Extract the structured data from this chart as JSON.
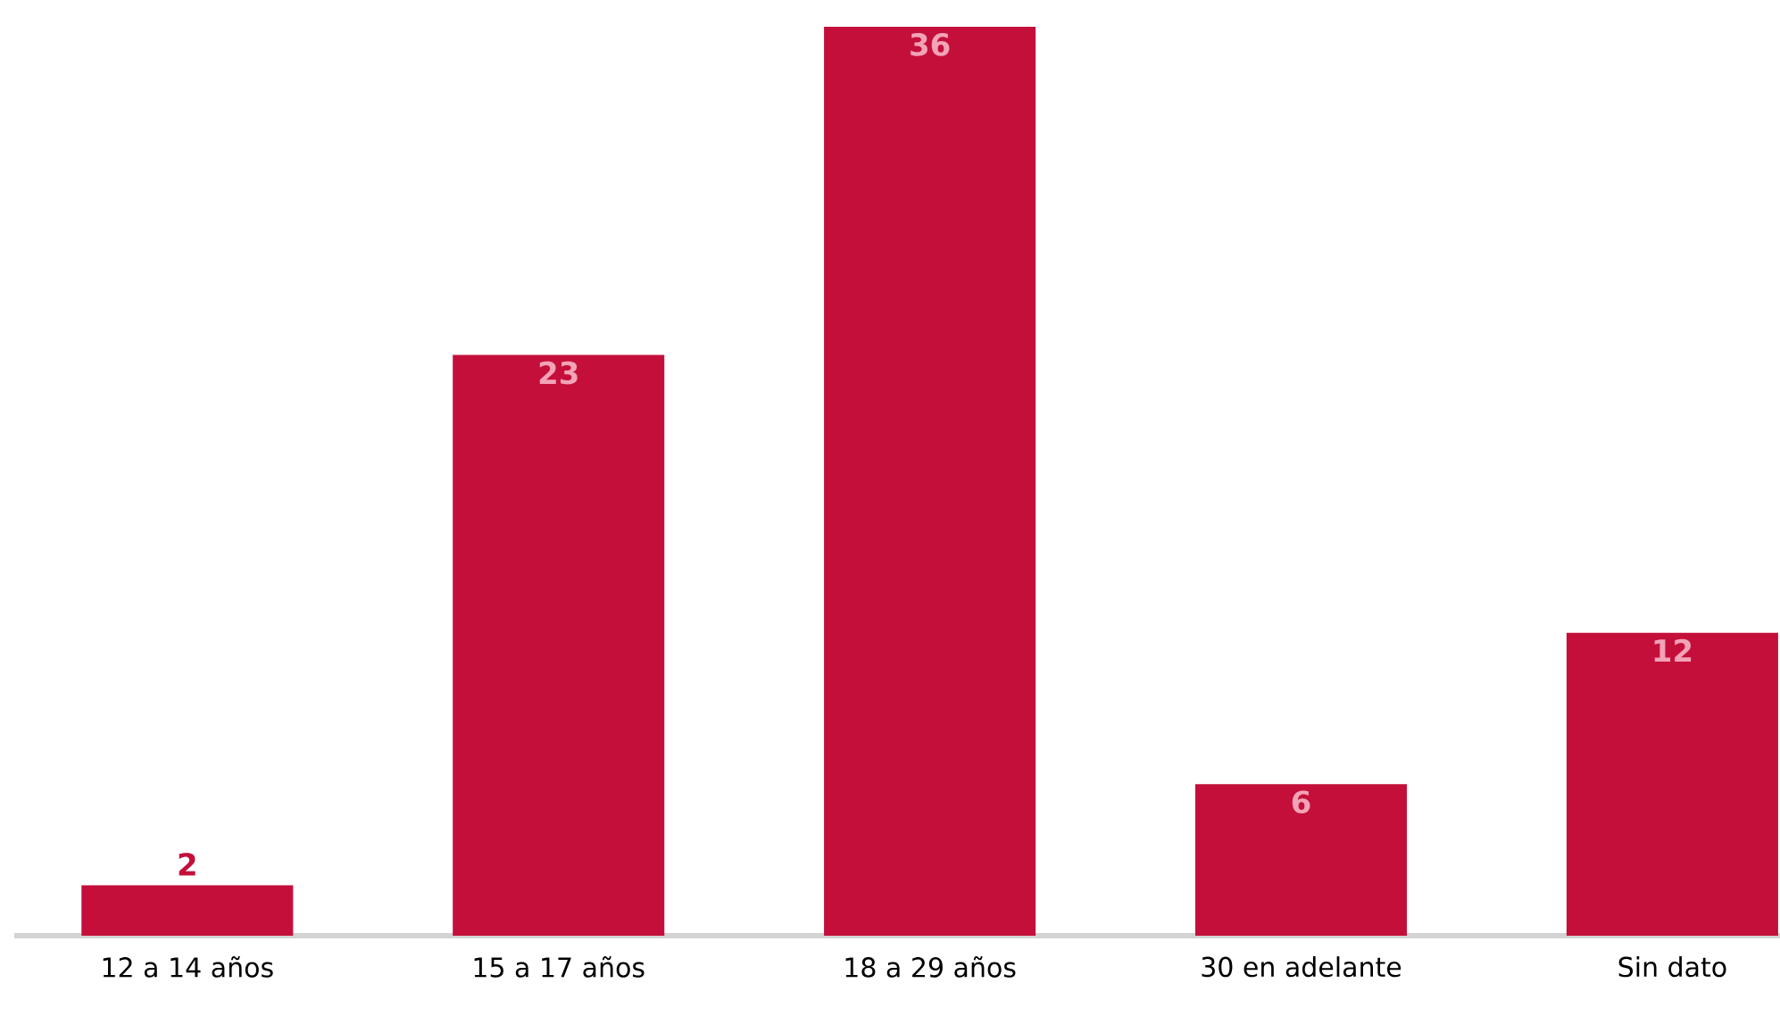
{
  "chart_data": {
    "type": "bar",
    "categories": [
      "12 a 14 años",
      "15 a 17 años",
      "18 a 29 años",
      "30 en adelante",
      "Sin dato"
    ],
    "values": [
      2,
      23,
      36,
      6,
      12
    ],
    "color": "#c40f3b",
    "data_labels": true
  }
}
